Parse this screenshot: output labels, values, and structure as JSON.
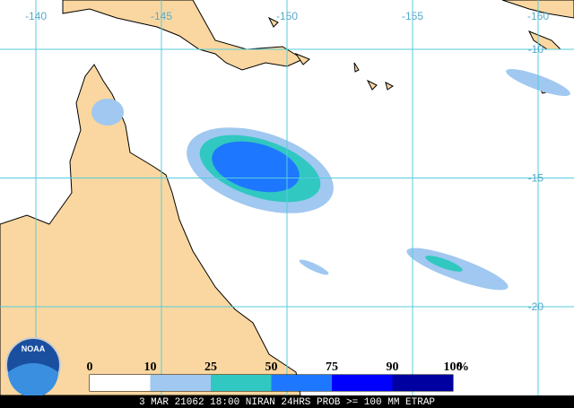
{
  "map": {
    "lon_labels": [
      "-140",
      "-145",
      "-150",
      "-155",
      "-160"
    ],
    "lat_labels": [
      "-10",
      "-15",
      "-20"
    ]
  },
  "legend": {
    "labels": [
      "0",
      "10",
      "25",
      "50",
      "75",
      "90",
      "100"
    ],
    "unit": "%",
    "colors": [
      "#ffffff",
      "#a0c8f0",
      "#30c8c0",
      "#1e78ff",
      "#0000ff",
      "#0000a0"
    ]
  },
  "logo": "NOAA",
  "caption": "3 MAR 21062 18:00 NIRAN 24HRS PROB >= 100 MM ETRAP"
}
